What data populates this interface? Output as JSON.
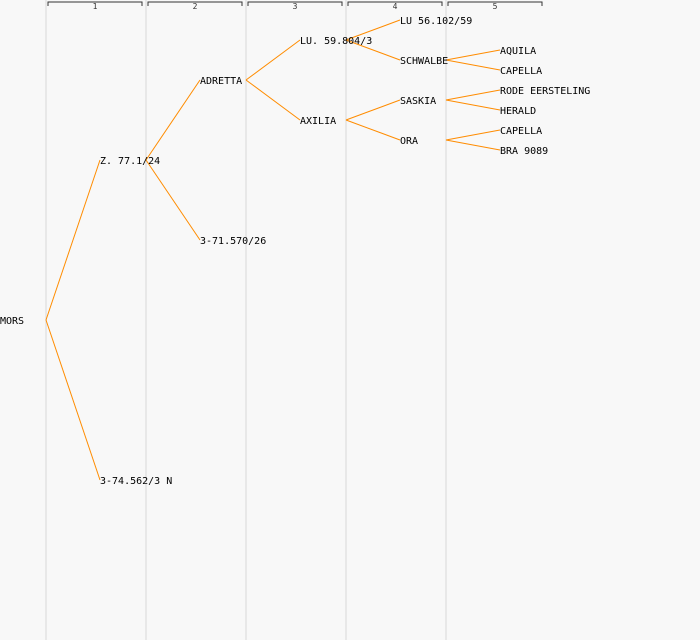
{
  "generations": [
    {
      "label": "1"
    },
    {
      "label": "2"
    },
    {
      "label": "3"
    },
    {
      "label": "4"
    },
    {
      "label": "5"
    }
  ],
  "colors": {
    "edge": "#ff8c00",
    "column_line": "#e2e2e2",
    "background": "#f8f8f8",
    "text": "#000000"
  },
  "tree": {
    "name": "MORS",
    "children": [
      {
        "name": "Z. 77.1/24",
        "children": [
          {
            "name": "ADRETTA",
            "children": [
              {
                "name": "LU. 59.804/3",
                "children": [
                  {
                    "name": "LU 56.102/59"
                  },
                  {
                    "name": "SCHWALBE",
                    "children": [
                      {
                        "name": "AQUILA"
                      },
                      {
                        "name": "CAPELLA"
                      }
                    ]
                  }
                ]
              },
              {
                "name": "AXILIA",
                "children": [
                  {
                    "name": "SASKIA",
                    "children": [
                      {
                        "name": "RODE EERSTELING"
                      },
                      {
                        "name": "HERALD"
                      }
                    ]
                  },
                  {
                    "name": "ORA",
                    "children": [
                      {
                        "name": "CAPELLA"
                      },
                      {
                        "name": "BRA 9089"
                      }
                    ]
                  }
                ]
              }
            ]
          },
          {
            "name": "3-71.570/26"
          }
        ]
      },
      {
        "name": "3-74.562/3 N"
      }
    ]
  }
}
